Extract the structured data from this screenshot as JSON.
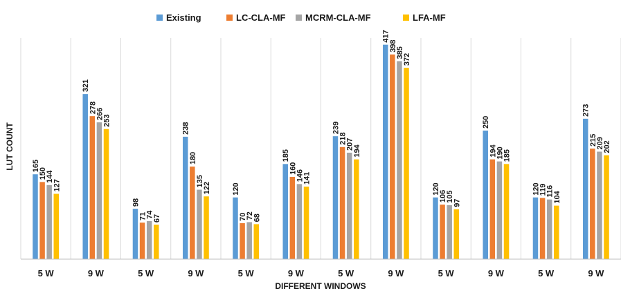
{
  "chart_data": {
    "type": "bar",
    "title": "",
    "xlabel": "DIFFERENT WINDOWS",
    "ylabel": "LUT COUNT",
    "ylim": [
      0,
      430
    ],
    "grid": false,
    "legend_position": "top",
    "categories": [
      "5 W",
      "9 W",
      "5 W",
      "9 W",
      "5 W",
      "9 W",
      "5 W",
      "9 W",
      "5 W",
      "9 W",
      "5 W",
      "9 W"
    ],
    "series": [
      {
        "name": "Existing",
        "color": "#5B9BD5",
        "values": [
          165,
          321,
          98,
          238,
          120,
          185,
          239,
          417,
          120,
          250,
          120,
          273
        ]
      },
      {
        "name": "LC-CLA-MF",
        "color": "#ED7D31",
        "values": [
          150,
          278,
          71,
          180,
          70,
          160,
          218,
          398,
          106,
          194,
          119,
          215
        ]
      },
      {
        "name": "MCRM-CLA-MF",
        "color": "#A5A5A5",
        "values": [
          144,
          266,
          74,
          135,
          72,
          146,
          207,
          385,
          105,
          190,
          116,
          209
        ]
      },
      {
        "name": "LFA-MF",
        "color": "#FFC000",
        "values": [
          127,
          253,
          67,
          122,
          68,
          141,
          194,
          372,
          97,
          185,
          104,
          202
        ]
      }
    ]
  }
}
